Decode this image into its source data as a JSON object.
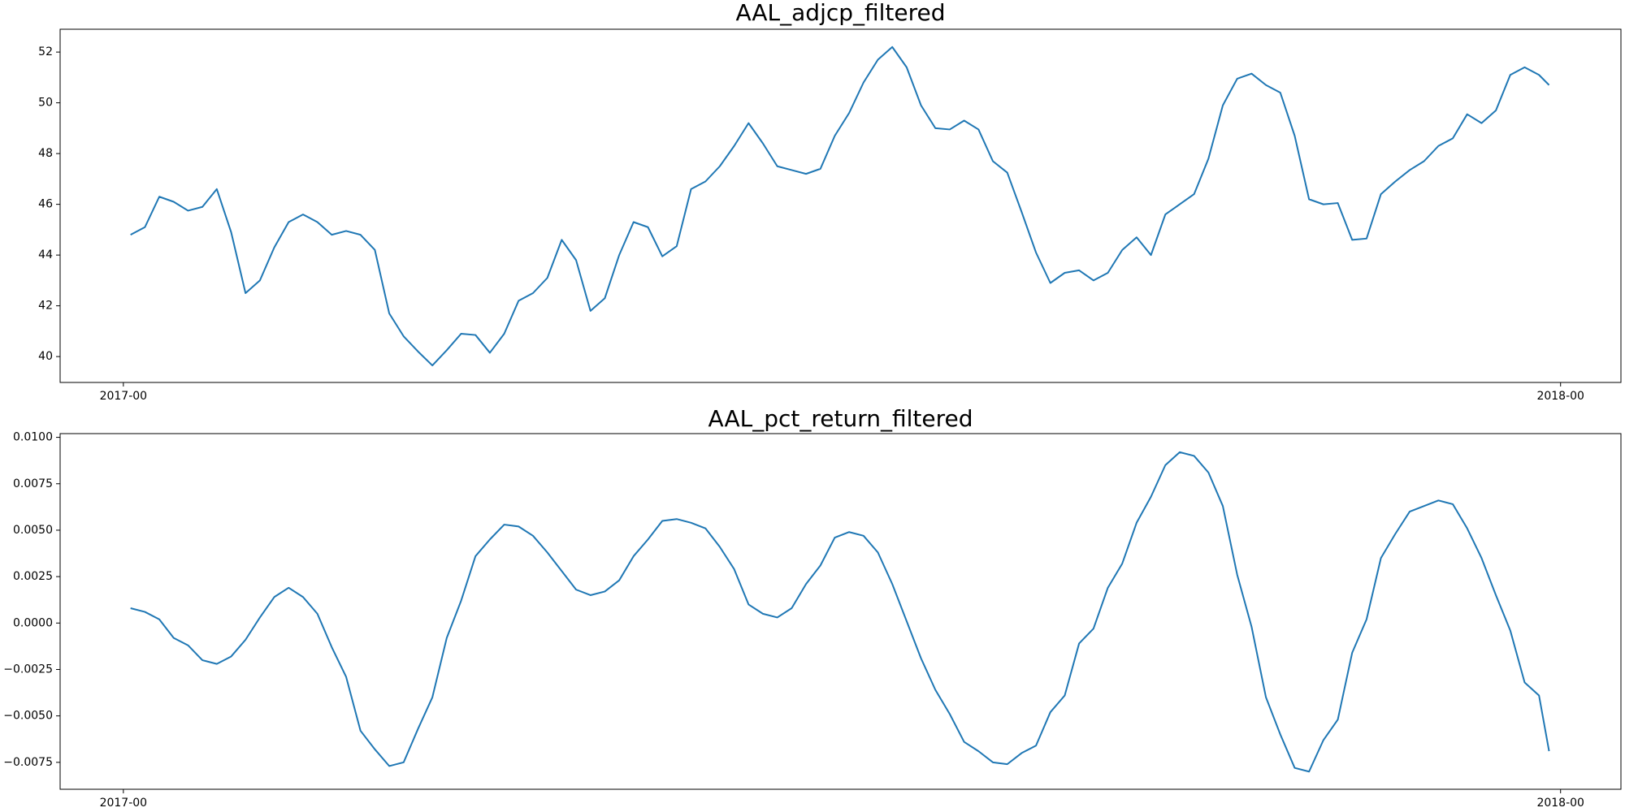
{
  "chart_data": [
    {
      "type": "line",
      "title": "AAL_adjcp_filtered",
      "color": "#1f77b4",
      "x": [
        2017.005,
        2017.015,
        2017.025,
        2017.035,
        2017.045,
        2017.055,
        2017.065,
        2017.075,
        2017.085,
        2017.095,
        2017.105,
        2017.115,
        2017.125,
        2017.135,
        2017.145,
        2017.155,
        2017.165,
        2017.175,
        2017.185,
        2017.195,
        2017.205,
        2017.215,
        2017.225,
        2017.235,
        2017.245,
        2017.255,
        2017.265,
        2017.275,
        2017.285,
        2017.295,
        2017.305,
        2017.315,
        2017.325,
        2017.335,
        2017.345,
        2017.355,
        2017.365,
        2017.375,
        2017.385,
        2017.395,
        2017.405,
        2017.415,
        2017.425,
        2017.435,
        2017.445,
        2017.455,
        2017.465,
        2017.475,
        2017.485,
        2017.495,
        2017.505,
        2017.515,
        2017.525,
        2017.535,
        2017.545,
        2017.555,
        2017.565,
        2017.575,
        2017.585,
        2017.595,
        2017.605,
        2017.615,
        2017.625,
        2017.635,
        2017.645,
        2017.655,
        2017.665,
        2017.675,
        2017.685,
        2017.695,
        2017.705,
        2017.715,
        2017.725,
        2017.735,
        2017.745,
        2017.755,
        2017.765,
        2017.775,
        2017.785,
        2017.795,
        2017.805,
        2017.815,
        2017.825,
        2017.835,
        2017.845,
        2017.855,
        2017.865,
        2017.875,
        2017.885,
        2017.895,
        2017.905,
        2017.915,
        2017.925,
        2017.935,
        2017.945,
        2017.955,
        2017.965,
        2017.975,
        2017.985,
        2017.992
      ],
      "values": [
        44.8,
        45.1,
        46.3,
        46.1,
        45.75,
        45.9,
        46.6,
        44.9,
        42.5,
        43.0,
        44.3,
        45.3,
        45.6,
        45.3,
        44.8,
        44.95,
        44.8,
        44.2,
        41.7,
        40.8,
        40.2,
        39.65,
        40.25,
        40.9,
        40.85,
        40.15,
        40.9,
        42.2,
        42.5,
        43.1,
        44.6,
        43.8,
        41.8,
        42.3,
        44.0,
        45.3,
        45.1,
        43.95,
        44.35,
        46.6,
        46.9,
        47.5,
        48.3,
        49.2,
        48.4,
        47.5,
        47.35,
        47.2,
        47.4,
        48.7,
        49.6,
        50.8,
        51.7,
        52.2,
        51.4,
        49.9,
        49.0,
        48.95,
        49.3,
        48.95,
        47.7,
        47.25,
        45.7,
        44.1,
        42.9,
        43.3,
        43.4,
        43.0,
        43.3,
        44.2,
        44.7,
        44.0,
        45.6,
        46.0,
        46.4,
        47.8,
        49.9,
        50.95,
        51.15,
        50.7,
        50.4,
        48.7,
        46.2,
        46.0,
        46.05,
        44.6,
        44.65,
        46.4,
        46.9,
        47.35,
        47.7,
        48.3,
        48.6,
        49.55,
        49.2,
        49.7,
        51.1,
        51.4,
        51.1,
        50.7
      ],
      "xlim": [
        2016.956,
        2018.042
      ],
      "xticks": [
        {
          "value": 2017,
          "label": "2017-00"
        },
        {
          "value": 2018,
          "label": "2018-00"
        }
      ],
      "ylim": [
        38.98,
        52.9
      ],
      "yticks": [
        40,
        42,
        44,
        46,
        48,
        50,
        52
      ]
    },
    {
      "type": "line",
      "title": "AAL_pct_return_filtered",
      "color": "#1f77b4",
      "x": [
        2017.005,
        2017.015,
        2017.025,
        2017.035,
        2017.045,
        2017.055,
        2017.065,
        2017.075,
        2017.085,
        2017.095,
        2017.105,
        2017.115,
        2017.125,
        2017.135,
        2017.145,
        2017.155,
        2017.165,
        2017.175,
        2017.185,
        2017.195,
        2017.205,
        2017.215,
        2017.225,
        2017.235,
        2017.245,
        2017.255,
        2017.265,
        2017.275,
        2017.285,
        2017.295,
        2017.305,
        2017.315,
        2017.325,
        2017.335,
        2017.345,
        2017.355,
        2017.365,
        2017.375,
        2017.385,
        2017.395,
        2017.405,
        2017.415,
        2017.425,
        2017.435,
        2017.445,
        2017.455,
        2017.465,
        2017.475,
        2017.485,
        2017.495,
        2017.505,
        2017.515,
        2017.525,
        2017.535,
        2017.545,
        2017.555,
        2017.565,
        2017.575,
        2017.585,
        2017.595,
        2017.605,
        2017.615,
        2017.625,
        2017.635,
        2017.645,
        2017.655,
        2017.665,
        2017.675,
        2017.685,
        2017.695,
        2017.705,
        2017.715,
        2017.725,
        2017.735,
        2017.745,
        2017.755,
        2017.765,
        2017.775,
        2017.785,
        2017.795,
        2017.805,
        2017.815,
        2017.825,
        2017.835,
        2017.845,
        2017.855,
        2017.865,
        2017.875,
        2017.885,
        2017.895,
        2017.905,
        2017.915,
        2017.925,
        2017.935,
        2017.945,
        2017.955,
        2017.965,
        2017.975,
        2017.985,
        2017.992
      ],
      "values": [
        0.0008,
        0.0006,
        0.0002,
        -0.0008,
        -0.0012,
        -0.002,
        -0.0022,
        -0.0018,
        -0.0009,
        0.0003,
        0.0014,
        0.0019,
        0.0014,
        0.0005,
        -0.0013,
        -0.0029,
        -0.0058,
        -0.0068,
        -0.0077,
        -0.0075,
        -0.0057,
        -0.004,
        -0.0008,
        0.0012,
        0.0036,
        0.0045,
        0.0053,
        0.0052,
        0.0047,
        0.0038,
        0.0028,
        0.0018,
        0.0015,
        0.0017,
        0.0023,
        0.0036,
        0.0045,
        0.0055,
        0.0056,
        0.0054,
        0.0051,
        0.0041,
        0.0029,
        0.001,
        0.0005,
        0.0003,
        0.0008,
        0.0021,
        0.0031,
        0.0046,
        0.0049,
        0.0047,
        0.0038,
        0.0021,
        0.0001,
        -0.0019,
        -0.0036,
        -0.0049,
        -0.0064,
        -0.0069,
        -0.0075,
        -0.0076,
        -0.007,
        -0.0066,
        -0.0048,
        -0.0039,
        -0.0011,
        -0.0003,
        0.0019,
        0.0032,
        0.0054,
        0.0068,
        0.0085,
        0.0092,
        0.009,
        0.0081,
        0.0063,
        0.0026,
        -0.0002,
        -0.004,
        -0.006,
        -0.0078,
        -0.008,
        -0.0063,
        -0.0052,
        -0.0016,
        0.0002,
        0.0035,
        0.0048,
        0.006,
        0.0063,
        0.0066,
        0.0064,
        0.0051,
        0.0035,
        0.0015,
        -0.0004,
        -0.0032,
        -0.0039,
        -0.0069
      ],
      "xlim": [
        2016.956,
        2018.042
      ],
      "xticks": [
        {
          "value": 2017,
          "label": "2017-00"
        },
        {
          "value": 2018,
          "label": "2018-00"
        }
      ],
      "ylim": [
        -0.00895,
        0.0102
      ],
      "yticks": [
        {
          "value": -0.0075,
          "label": "−0.0075"
        },
        {
          "value": -0.005,
          "label": "−0.0050"
        },
        {
          "value": -0.0025,
          "label": "−0.0025"
        },
        {
          "value": 0,
          "label": "0.0000"
        },
        0.0025,
        {
          "value": 0.005,
          "label": "0.0050"
        },
        0.0075,
        {
          "value": 0.01,
          "label": "0.0100"
        }
      ]
    }
  ]
}
